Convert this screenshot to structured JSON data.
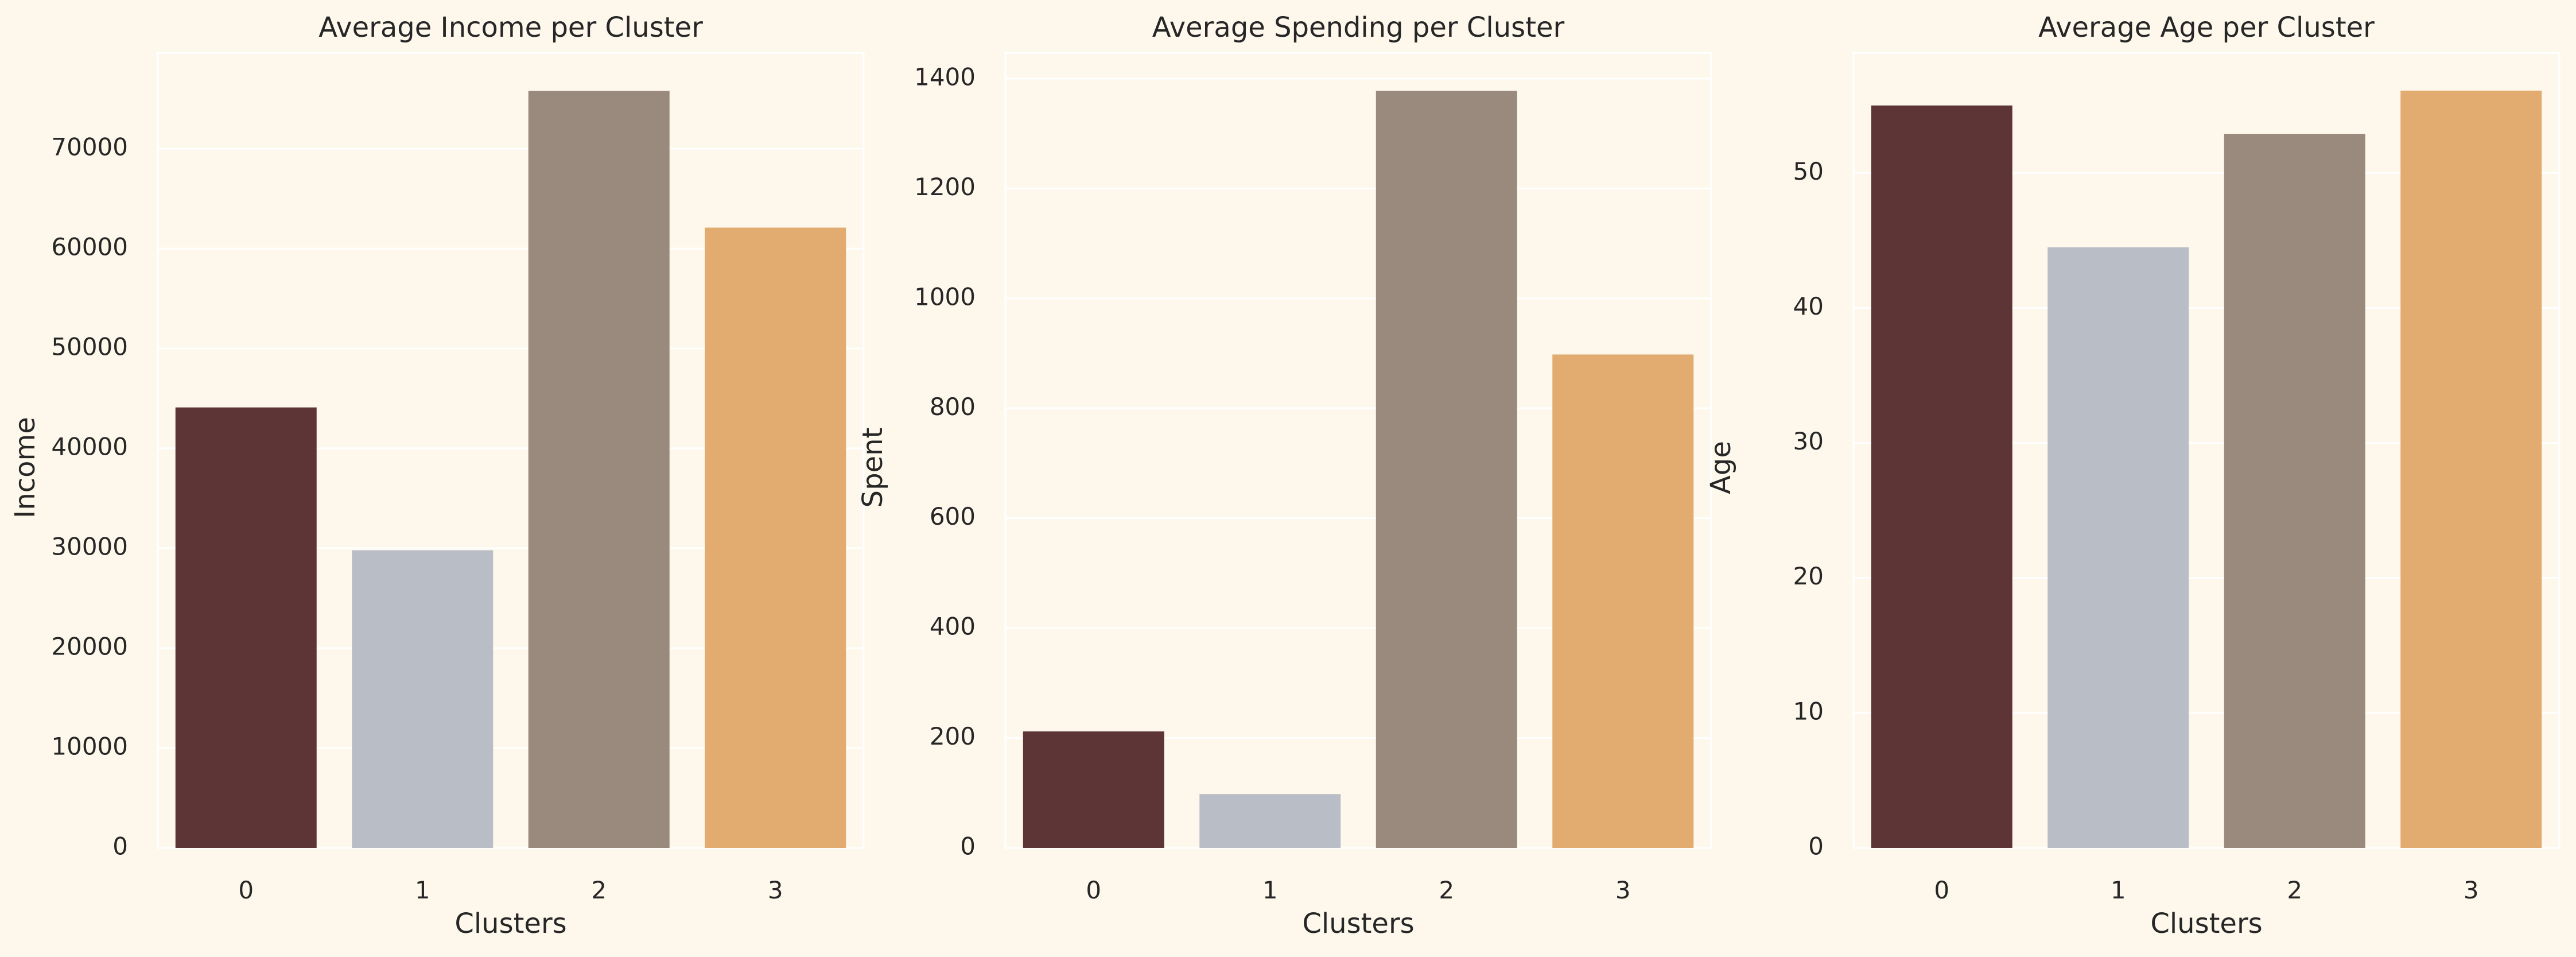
{
  "chart_data": [
    {
      "type": "bar",
      "title": "Average Income per Cluster",
      "xlabel": "Clusters",
      "ylabel": "Income",
      "categories": [
        "0",
        "1",
        "2",
        "3"
      ],
      "values": [
        44100,
        29800,
        75800,
        62100
      ],
      "yticks": [
        0,
        10000,
        20000,
        30000,
        40000,
        50000,
        60000,
        70000
      ],
      "ylim": [
        0,
        79600
      ],
      "grid": true
    },
    {
      "type": "bar",
      "title": "Average Spending per Cluster",
      "xlabel": "Clusters",
      "ylabel": "Spent",
      "categories": [
        "0",
        "1",
        "2",
        "3"
      ],
      "values": [
        212,
        98,
        1378,
        898
      ],
      "yticks": [
        0,
        200,
        400,
        600,
        800,
        1000,
        1200,
        1400
      ],
      "ylim": [
        0,
        1447
      ],
      "grid": true
    },
    {
      "type": "bar",
      "title": "Average Age per Cluster",
      "xlabel": "Clusters",
      "ylabel": "Age",
      "categories": [
        "0",
        "1",
        "2",
        "3"
      ],
      "values": [
        55.0,
        44.5,
        52.9,
        56.1
      ],
      "yticks": [
        0,
        10,
        20,
        30,
        40,
        50
      ],
      "ylim": [
        0,
        58.9
      ],
      "grid": true
    }
  ],
  "colors": [
    "#5E3536",
    "#B9BEC6",
    "#9A8A7D",
    "#E2AB6F"
  ],
  "background_color": "#FEF8EC"
}
